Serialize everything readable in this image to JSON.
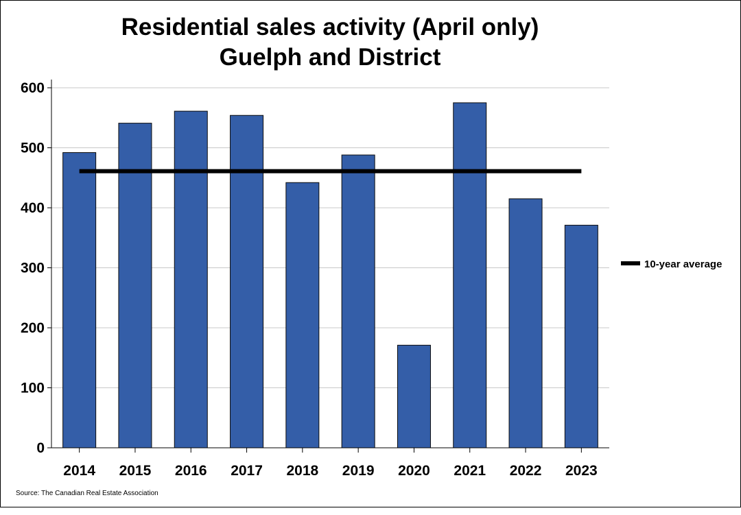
{
  "chart_data": {
    "type": "bar",
    "title": "Residential sales activity (April only)",
    "subtitle": "Guelph and District",
    "categories": [
      "2014",
      "2015",
      "2016",
      "2017",
      "2018",
      "2019",
      "2020",
      "2021",
      "2022",
      "2023"
    ],
    "values": [
      492,
      541,
      561,
      554,
      442,
      488,
      171,
      575,
      415,
      371
    ],
    "average": {
      "name": "10-year average",
      "value": 461
    },
    "ylim": [
      0,
      600
    ],
    "yticks": [
      0,
      100,
      200,
      300,
      400,
      500,
      600
    ],
    "xlabel": "",
    "ylabel": "",
    "grid": true,
    "legend_position": "right",
    "source": "Source: The Canadian Real Estate Association",
    "colors": {
      "bar": "#345EA8",
      "bar_edge": "#0a0a0a",
      "average_line": "#000000",
      "grid": "#c8c8c8"
    }
  }
}
